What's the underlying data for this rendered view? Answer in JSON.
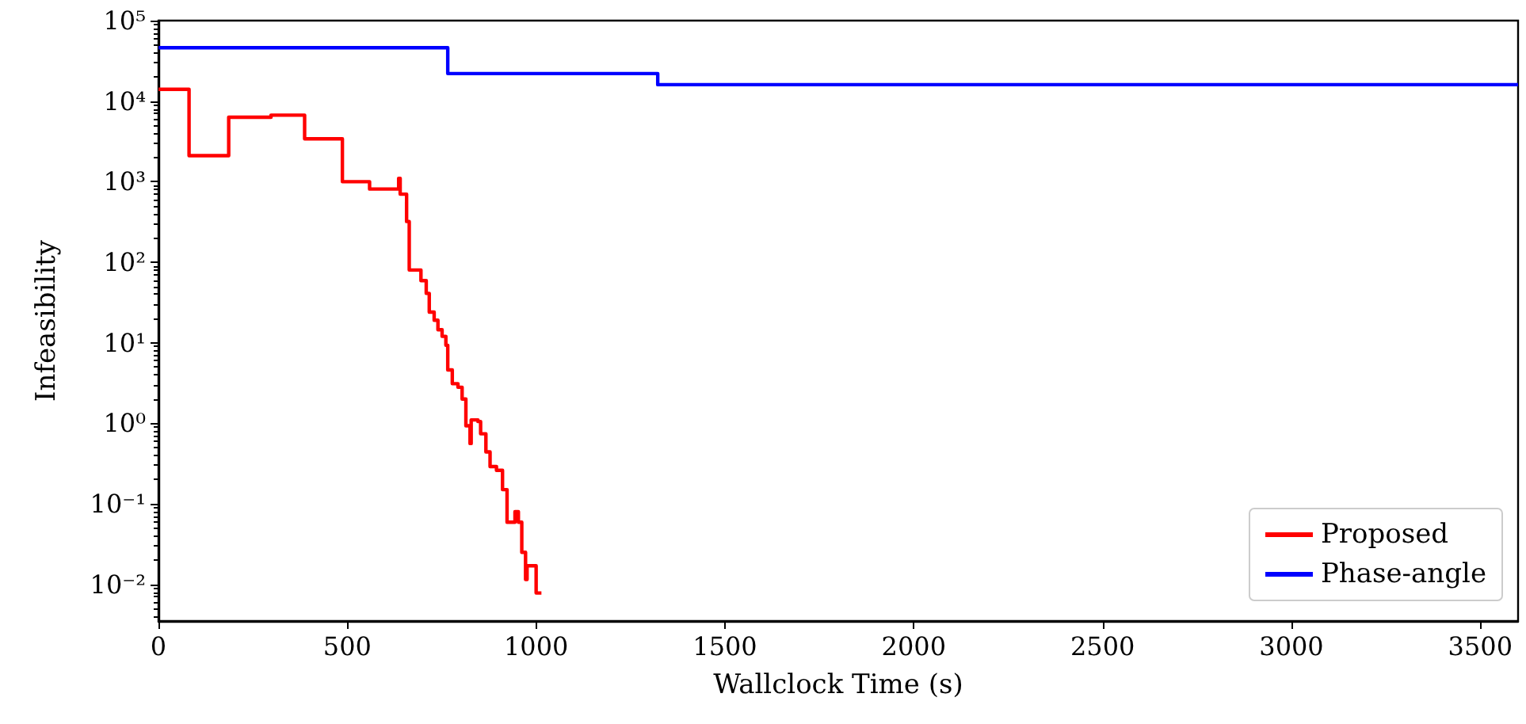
{
  "chart_data": {
    "type": "step",
    "xlabel": "Wallclock Time (s)",
    "ylabel": "Infeasibility",
    "log": "y",
    "xlim": [
      0,
      3600
    ],
    "xticks": [
      0,
      500,
      1000,
      1500,
      2000,
      2500,
      3000,
      3500
    ],
    "ylim": [
      0.0035,
      100000
    ],
    "yticks": [
      {
        "value": 0.01,
        "label": "10⁻²"
      },
      {
        "value": 0.1,
        "label": "10⁻¹"
      },
      {
        "value": 1,
        "label": "10⁰"
      },
      {
        "value": 10,
        "label": "10¹"
      },
      {
        "value": 100,
        "label": "10²"
      },
      {
        "value": 1000,
        "label": "10³"
      },
      {
        "value": 10000,
        "label": "10⁴"
      },
      {
        "value": 100000,
        "label": "10⁵"
      }
    ],
    "grid": false,
    "legend": "bottom right",
    "marker": "none",
    "line_style": "solid",
    "series": [
      {
        "name": "Proposed",
        "color": "#ff0000",
        "x": [
          0,
          81,
          186,
          298,
          387,
          487,
          559,
          636,
          640,
          648,
          657,
          664,
          695,
          709,
          717,
          730,
          740,
          751,
          761,
          766,
          778,
          793,
          804,
          814,
          825,
          828,
          846,
          853,
          867,
          878,
          895,
          911,
          923,
          944,
          953,
          962,
          972,
          976,
          1000,
          1014
        ],
        "values": [
          14000,
          2100,
          6300,
          6700,
          3400,
          1000,
          810,
          1100,
          700,
          700,
          320,
          80,
          59,
          41,
          24,
          19,
          14.5,
          12,
          9.3,
          4.6,
          3.1,
          2.8,
          2,
          0.93,
          0.56,
          1.1,
          1.05,
          0.74,
          0.44,
          0.29,
          0.26,
          0.15,
          0.059,
          0.08,
          0.059,
          0.025,
          0.0115,
          0.017,
          0.0078,
          0.0078
        ]
      },
      {
        "name": "Phase-angle",
        "color": "#0000ff",
        "x": [
          0,
          766,
          1322,
          3600
        ],
        "values": [
          46000,
          22000,
          16000,
          16000
        ]
      }
    ]
  }
}
